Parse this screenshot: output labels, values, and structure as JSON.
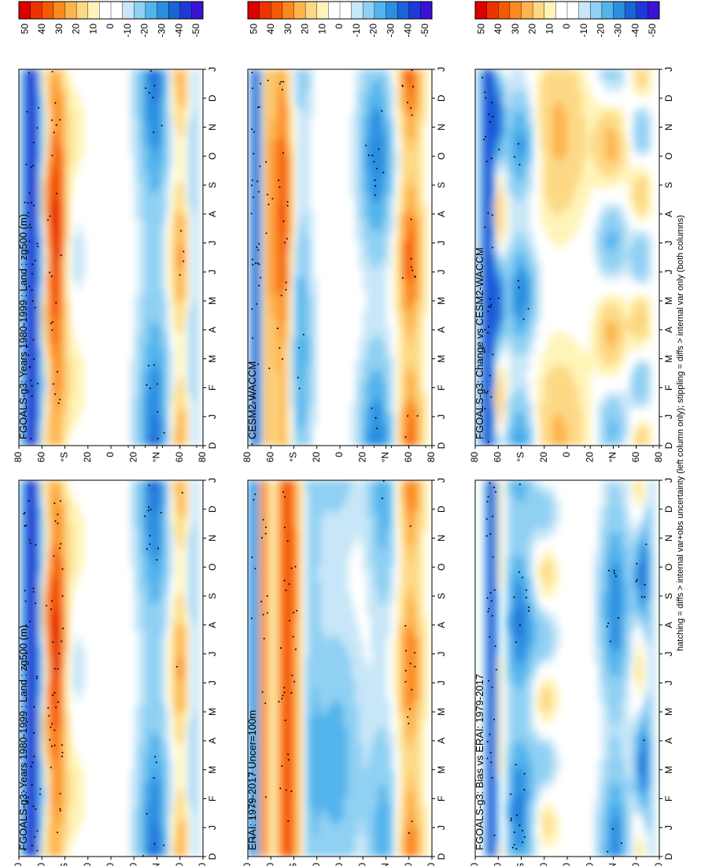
{
  "figure": {
    "footer": "hatching = diffs > internal var+obs uncertainty (left column only); stippling = diffs > internal var only (both columns)"
  },
  "chart_data": [
    {
      "type": "heatmap",
      "id": "p11",
      "title": "FGOALS-g3: Years 1980-1999 : Land : zg500 (m)",
      "months": [
        "D",
        "J",
        "F",
        "M",
        "A",
        "M",
        "J",
        "J",
        "A",
        "S",
        "O",
        "N",
        "D",
        "J"
      ],
      "lat_ticks": [
        "80",
        "60",
        "°N",
        "20",
        "0",
        "20",
        "°S",
        "60",
        "80"
      ],
      "colorbar_labels": [
        "50",
        "40",
        "30",
        "20",
        "10",
        "0",
        "-10",
        "-20",
        "-30",
        "-40",
        "-50"
      ],
      "field": "clim"
    },
    {
      "type": "heatmap",
      "id": "p12",
      "title": "FGOALS-g3: Years 1980-1999 : Land : zg500 (m)",
      "months": [
        "D",
        "J",
        "F",
        "M",
        "A",
        "M",
        "J",
        "J",
        "A",
        "S",
        "O",
        "N",
        "D",
        "J"
      ],
      "lat_ticks": [
        "80",
        "60",
        "°N",
        "20",
        "0",
        "20",
        "°S",
        "60",
        "80"
      ],
      "colorbar_labels": [
        "50",
        "40",
        "30",
        "20",
        "10",
        "0",
        "-10",
        "-20",
        "-30",
        "-40",
        "-50"
      ],
      "field": "clim"
    },
    {
      "type": "heatmap",
      "id": "p21",
      "title": "ERAI: 1979-2017 Uncer=100m",
      "months": [
        "D",
        "J",
        "F",
        "M",
        "A",
        "M",
        "J",
        "J",
        "A",
        "S",
        "O",
        "N",
        "D",
        "J"
      ],
      "lat_ticks": [
        "80",
        "60",
        "°N",
        "20",
        "0",
        "20",
        "°S",
        "60",
        "80"
      ],
      "colorbar_labels": [
        "50",
        "40",
        "30",
        "20",
        "10",
        "0",
        "-10",
        "-20",
        "-30",
        "-40",
        "-50"
      ],
      "field": "obs"
    },
    {
      "type": "heatmap",
      "id": "p22",
      "title": "CESM2-WACCM",
      "months": [
        "D",
        "J",
        "F",
        "M",
        "A",
        "M",
        "J",
        "J",
        "A",
        "S",
        "O",
        "N",
        "D",
        "J"
      ],
      "lat_ticks": [
        "80",
        "60",
        "°N",
        "20",
        "0",
        "20",
        "°S",
        "60",
        "80"
      ],
      "colorbar_labels": [
        "50",
        "40",
        "30",
        "20",
        "10",
        "0",
        "-10",
        "-20",
        "-30",
        "-40",
        "-50"
      ],
      "field": "cesm"
    },
    {
      "type": "heatmap",
      "id": "p31",
      "title": "FGOALS-g3: Bias vs ERAI: 1979-2017",
      "months": [
        "D",
        "J",
        "F",
        "M",
        "A",
        "M",
        "J",
        "J",
        "A",
        "S",
        "O",
        "N",
        "D",
        "J"
      ],
      "lat_ticks": [
        "80",
        "60",
        "°N",
        "20",
        "0",
        "20",
        "°S",
        "60",
        "80"
      ],
      "colorbar_labels": [
        "50",
        "40",
        "30",
        "20",
        "10",
        "0",
        "-10",
        "-20",
        "-30",
        "-40",
        "-50"
      ],
      "field": "bias"
    },
    {
      "type": "heatmap",
      "id": "p32",
      "title": "FGOALS-g3: Change vs CESM2-WACCM",
      "months": [
        "D",
        "J",
        "F",
        "M",
        "A",
        "M",
        "J",
        "J",
        "A",
        "S",
        "O",
        "N",
        "D",
        "J"
      ],
      "lat_ticks": [
        "80",
        "60",
        "°N",
        "20",
        "0",
        "20",
        "°S",
        "60",
        "80"
      ],
      "colorbar_labels": [
        "50",
        "40",
        "30",
        "20",
        "10",
        "0",
        "-10",
        "-20",
        "-30",
        "-40",
        "-50"
      ],
      "field": "change"
    }
  ],
  "colors": {
    "scale": [
      "#dd0000",
      "#ee3300",
      "#f55a00",
      "#fb8a1e",
      "#fdb44d",
      "#fdd985",
      "#fff4b8",
      "#ffffff",
      "#ffffff",
      "#c7e6f7",
      "#8fd0f3",
      "#53b4ec",
      "#2b8fe0",
      "#1a64d8",
      "#2138d8",
      "#3a12d6"
    ]
  }
}
